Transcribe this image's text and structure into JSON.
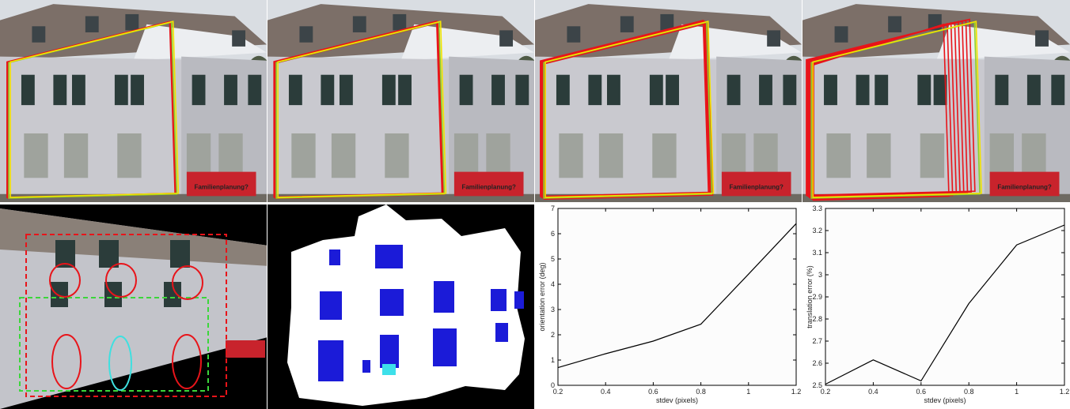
{
  "photos": {
    "sign_text": "Familienplanung?"
  },
  "chart_data": [
    {
      "type": "line",
      "xlabel": "stdev (pixels)",
      "ylabel": "orientation error (deg)",
      "xlim": [
        0.2,
        1.2
      ],
      "ylim": [
        0,
        7
      ],
      "xticks": [
        0.2,
        0.4,
        0.6,
        0.8,
        1,
        1.2
      ],
      "yticks": [
        0,
        1,
        2,
        3,
        4,
        5,
        6,
        7
      ],
      "grid": false,
      "series": [
        {
          "x": [
            0.2,
            0.4,
            0.6,
            0.8,
            1.0,
            1.2
          ],
          "y": [
            0.7,
            1.25,
            1.75,
            2.42,
            4.4,
            6.4
          ]
        }
      ]
    },
    {
      "type": "line",
      "xlabel": "stdev (pixels)",
      "ylabel": "translation error (%)",
      "xlim": [
        0.2,
        1.2
      ],
      "ylim": [
        2.5,
        3.3
      ],
      "xticks": [
        0.2,
        0.4,
        0.6,
        0.8,
        1,
        1.2
      ],
      "yticks": [
        2.5,
        2.6,
        2.7,
        2.8,
        2.9,
        3,
        3.1,
        3.2,
        3.3
      ],
      "grid": false,
      "series": [
        {
          "x": [
            0.2,
            0.4,
            0.6,
            0.8,
            1.0,
            1.2
          ],
          "y": [
            2.505,
            2.615,
            2.52,
            2.87,
            3.135,
            3.225
          ]
        }
      ]
    }
  ]
}
